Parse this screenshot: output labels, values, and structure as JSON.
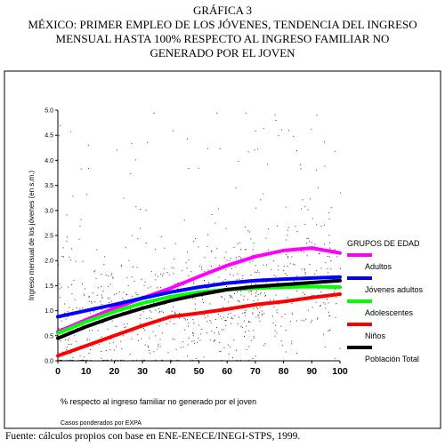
{
  "header": {
    "chart_number": "GRÁFICA 3",
    "title_line1": "MÉXICO: PRIMER EMPLEO DE LOS JÓVENES, TENDENCIA DEL INGRESO",
    "title_line2": "MENSUAL HASTA 100% RESPECTO AL INGRESO FAMILIAR NO",
    "title_line3": "GENERADO POR EL JOVEN"
  },
  "footer": {
    "source": "Fuente: cálculos propios con base en ENE-ENECE/INEGI-STPS, 1999."
  },
  "chart_data": {
    "type": "line",
    "xlabel": "% respecto al ingreso familiar no generado por el joven",
    "ylabel": "Ingreso mensual de los jóvenes (en s.m.)",
    "note": "Casos ponderados por EXPA",
    "xlim": [
      0,
      100
    ],
    "ylim": [
      0.0,
      5.0
    ],
    "x_ticks": [
      "0",
      "10",
      "20",
      "30",
      "40",
      "50",
      "60",
      "70",
      "80",
      "90",
      "100"
    ],
    "y_ticks": [
      "0.0",
      "0.5",
      "1.0",
      "1.5",
      "2.0",
      "2.5",
      "3.0",
      "3.5",
      "4.0",
      "4.5",
      "5.0"
    ],
    "grid": false,
    "legend_title": "GRUPOS DE EDAD",
    "legend_position": "right",
    "x": [
      0,
      10,
      20,
      30,
      40,
      50,
      60,
      70,
      80,
      90,
      100
    ],
    "series": [
      {
        "name": "Adultos",
        "color": "#ff00ff",
        "values": [
          0.58,
          0.82,
          1.05,
          1.25,
          1.45,
          1.68,
          1.9,
          2.08,
          2.2,
          2.25,
          2.15
        ]
      },
      {
        "name": "Jóvenes adultos",
        "color": "#0000ff",
        "values": [
          0.88,
          1.0,
          1.12,
          1.25,
          1.37,
          1.47,
          1.55,
          1.6,
          1.63,
          1.65,
          1.67
        ]
      },
      {
        "name": "Adolescentes",
        "color": "#00ff00",
        "values": [
          0.55,
          0.78,
          0.98,
          1.15,
          1.28,
          1.37,
          1.42,
          1.45,
          1.47,
          1.48,
          1.47
        ]
      },
      {
        "name": "Niños",
        "color": "#ff0000",
        "values": [
          0.1,
          0.3,
          0.5,
          0.7,
          0.88,
          0.95,
          1.03,
          1.12,
          1.18,
          1.26,
          1.33
        ]
      },
      {
        "name": "Población Total",
        "color": "#000000",
        "values": [
          0.45,
          0.68,
          0.88,
          1.05,
          1.2,
          1.32,
          1.42,
          1.48,
          1.52,
          1.56,
          1.6
        ]
      }
    ]
  }
}
